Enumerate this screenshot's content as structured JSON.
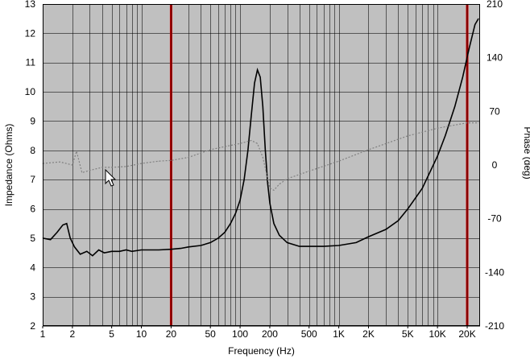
{
  "colors": {
    "plot_bg": "#c0c0c0",
    "grid": "#000000",
    "impedance": "#000000",
    "phase": "#808080",
    "markers": "#cc0000"
  },
  "chart_data": {
    "type": "line",
    "xlabel": "Frequency (Hz)",
    "ylabel_left": "Impedance (Ohms)",
    "ylabel_right": "Phase (deg)",
    "x_scale": "log",
    "xlim": [
      1,
      27000
    ],
    "ylim_left": [
      2,
      13
    ],
    "ylim_right": [
      -210,
      210
    ],
    "grid": true,
    "x_ticks": [
      {
        "value": 1,
        "label": "1"
      },
      {
        "value": 2,
        "label": "2"
      },
      {
        "value": 5,
        "label": "5"
      },
      {
        "value": 10,
        "label": "10"
      },
      {
        "value": 20,
        "label": "20"
      },
      {
        "value": 50,
        "label": "50"
      },
      {
        "value": 100,
        "label": "100"
      },
      {
        "value": 200,
        "label": "200"
      },
      {
        "value": 500,
        "label": "500"
      },
      {
        "value": 1000,
        "label": "1K"
      },
      {
        "value": 2000,
        "label": "2K"
      },
      {
        "value": 5000,
        "label": "5K"
      },
      {
        "value": 10000,
        "label": "10K"
      },
      {
        "value": 20000,
        "label": "20K"
      }
    ],
    "y_left_ticks": [
      "2",
      "3",
      "4",
      "5",
      "6",
      "7",
      "8",
      "9",
      "10",
      "11",
      "12",
      "13"
    ],
    "y_right_ticks": [
      {
        "value": 210,
        "label": "210"
      },
      {
        "value": 140,
        "label": "140"
      },
      {
        "value": 70,
        "label": "70"
      },
      {
        "value": 0,
        "label": "0"
      },
      {
        "value": -70,
        "label": "-70"
      },
      {
        "value": -140,
        "label": "-140"
      },
      {
        "value": -210,
        "label": "-210"
      }
    ],
    "markers": [
      20,
      20000
    ],
    "series": [
      {
        "axis": "left",
        "x": [
          1,
          1.2,
          1.4,
          1.6,
          1.75,
          1.9,
          2.1,
          2.4,
          2.8,
          3.2,
          3.7,
          4.2,
          5,
          6,
          7,
          8,
          10,
          12,
          15,
          20,
          25,
          30,
          40,
          50,
          60,
          70,
          80,
          90,
          100,
          110,
          120,
          130,
          140,
          150,
          160,
          170,
          180,
          190,
          200,
          220,
          250,
          300,
          400,
          500,
          700,
          1000,
          1500,
          2000,
          3000,
          4000,
          5000,
          7000,
          10000,
          12000,
          15000,
          18000,
          21000,
          24000,
          26000
        ],
        "y": [
          5.0,
          4.95,
          5.2,
          5.45,
          5.5,
          5.0,
          4.7,
          4.45,
          4.55,
          4.4,
          4.6,
          4.5,
          4.55,
          4.55,
          4.6,
          4.55,
          4.6,
          4.6,
          4.6,
          4.62,
          4.65,
          4.7,
          4.75,
          4.85,
          5.0,
          5.2,
          5.5,
          5.85,
          6.3,
          7.0,
          8.0,
          9.2,
          10.3,
          10.75,
          10.5,
          9.5,
          8.0,
          6.9,
          6.2,
          5.5,
          5.1,
          4.85,
          4.72,
          4.72,
          4.72,
          4.75,
          4.85,
          5.05,
          5.3,
          5.6,
          6.0,
          6.7,
          7.8,
          8.5,
          9.5,
          10.5,
          11.5,
          12.3,
          12.5
        ]
      },
      {
        "axis": "right",
        "x": [
          1,
          1.5,
          2,
          2.2,
          2.5,
          3,
          4,
          5,
          7,
          10,
          15,
          20,
          30,
          50,
          70,
          100,
          130,
          150,
          170,
          200,
          220,
          250,
          300,
          500,
          1000,
          2000,
          5000,
          10000,
          20000,
          26000
        ],
        "y": [
          2,
          4,
          0,
          18,
          -10,
          -7,
          -3,
          -3,
          -2,
          2,
          5,
          6,
          10,
          20,
          24,
          28,
          32,
          28,
          10,
          -30,
          -33,
          -25,
          -18,
          -8,
          5,
          20,
          38,
          48,
          55,
          55
        ]
      }
    ]
  }
}
